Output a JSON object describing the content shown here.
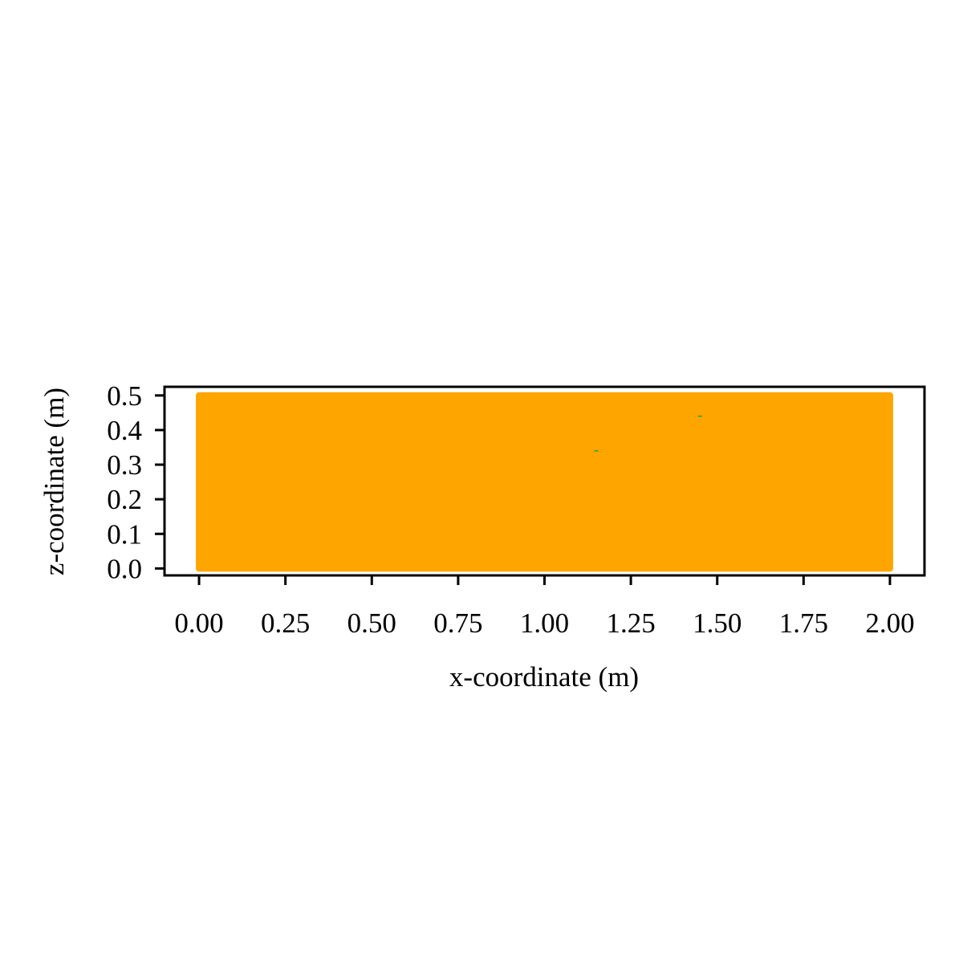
{
  "chart_data": {
    "type": "scatter",
    "title": "",
    "xlabel": "x-coordinate (m)",
    "ylabel": "z-coordinate (m)",
    "xlim": [
      -0.1,
      2.1
    ],
    "ylim": [
      -0.02,
      0.525
    ],
    "xticks": [
      0.0,
      0.25,
      0.5,
      0.75,
      1.0,
      1.25,
      1.5,
      1.75,
      2.0
    ],
    "xtick_labels": [
      "0.00",
      "0.25",
      "0.50",
      "0.75",
      "1.00",
      "1.25",
      "1.50",
      "1.75",
      "2.00"
    ],
    "yticks": [
      0.0,
      0.1,
      0.2,
      0.3,
      0.4,
      0.5
    ],
    "ytick_labels": [
      "0.0",
      "0.1",
      "0.2",
      "0.3",
      "0.4",
      "0.5"
    ],
    "grid": false,
    "legend": "none",
    "filled_region": {
      "x": [
        0.0,
        2.0
      ],
      "z": [
        0.0,
        0.5
      ],
      "color": "#FFA500"
    },
    "points": [
      {
        "x": 1.15,
        "z": 0.34,
        "color": "#2ca02c"
      },
      {
        "x": 1.45,
        "z": 0.44,
        "color": "#2ca02c"
      }
    ]
  }
}
